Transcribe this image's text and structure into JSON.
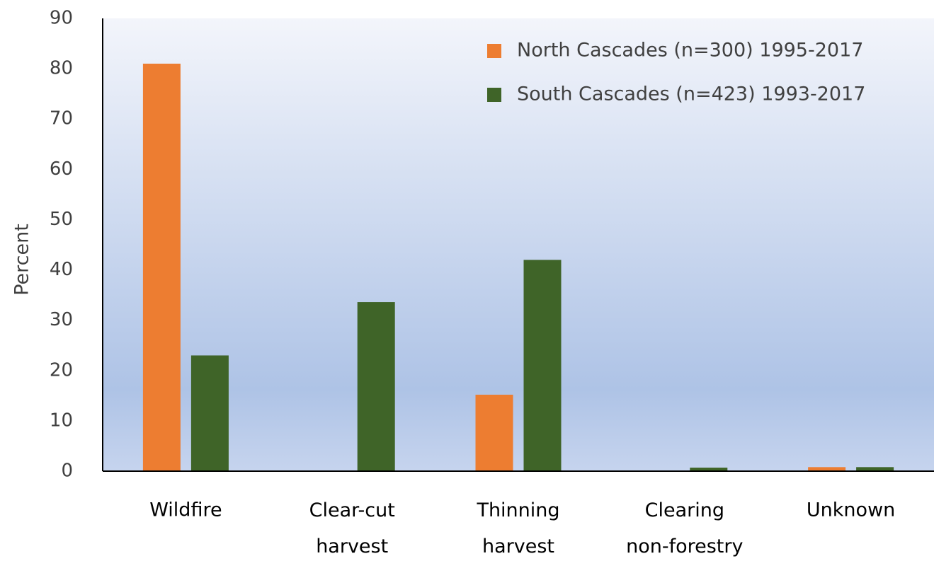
{
  "chart_data": {
    "type": "bar",
    "y_label": "Percent",
    "categories": [
      "Wildfire",
      "Clear-cut harvest",
      "Thinning harvest",
      "Clearing non-forestry",
      "Unknown"
    ],
    "series": [
      {
        "name": "North Cascades (n=300) 1995-2017",
        "color": "#ed7d31",
        "values": [
          81,
          0,
          15.2,
          0,
          0.8
        ]
      },
      {
        "name": "South Cascades (n=423) 1993-2017",
        "color": "#3f6428",
        "values": [
          23,
          33.6,
          42,
          0.7,
          0.8
        ]
      }
    ],
    "ylim": [
      0,
      90
    ],
    "yticks": [
      0,
      10,
      20,
      30,
      40,
      50,
      60,
      70,
      80,
      90
    ],
    "grid": false,
    "legend": "upper right"
  }
}
